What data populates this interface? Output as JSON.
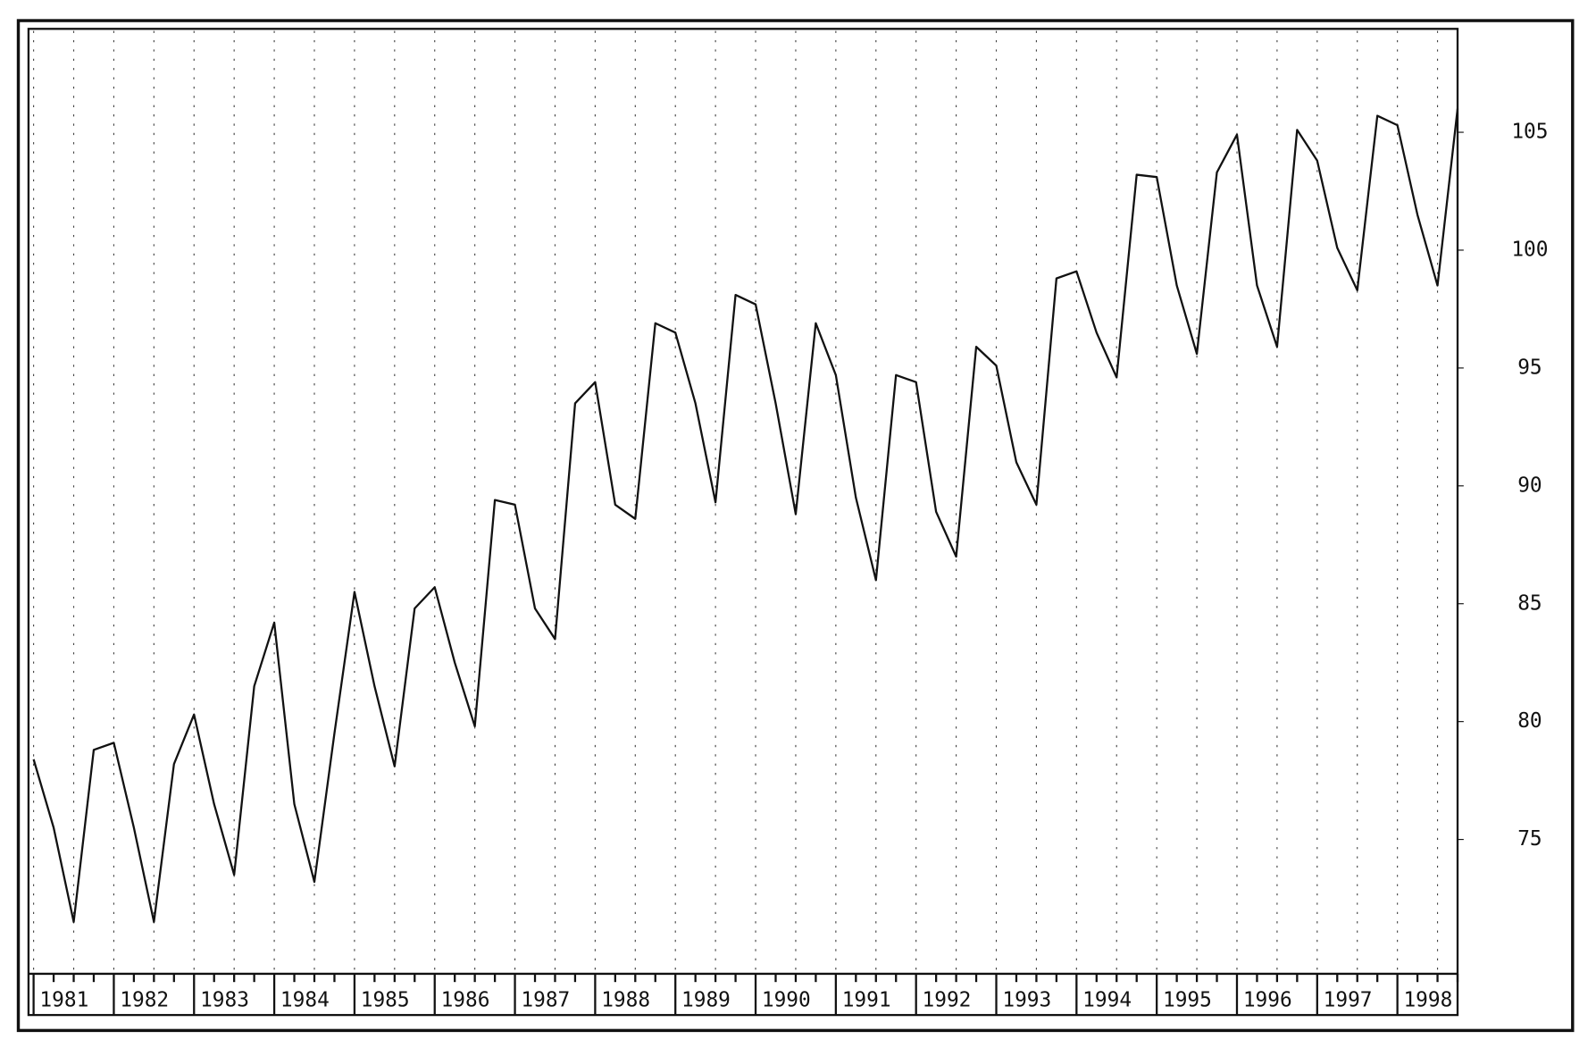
{
  "chart_data": {
    "type": "line",
    "x": [
      1981,
      1981.25,
      1981.5,
      1981.75,
      1982,
      1982.25,
      1982.5,
      1982.75,
      1983,
      1983.25,
      1983.5,
      1983.75,
      1984,
      1984.25,
      1984.5,
      1984.75,
      1985,
      1985.25,
      1985.5,
      1985.75,
      1986,
      1986.25,
      1986.5,
      1986.75,
      1987,
      1987.25,
      1987.5,
      1987.75,
      1988,
      1988.25,
      1988.5,
      1988.75,
      1989,
      1989.25,
      1989.5,
      1989.75,
      1990,
      1990.25,
      1990.5,
      1990.75,
      1991,
      1991.25,
      1991.5,
      1991.75,
      1992,
      1992.25,
      1992.5,
      1992.75,
      1993,
      1993.25,
      1993.5,
      1993.75,
      1994,
      1994.25,
      1994.5,
      1994.75,
      1995,
      1995.25,
      1995.5,
      1995.75,
      1996,
      1996.25,
      1996.5,
      1996.75,
      1997,
      1997.25,
      1997.5,
      1997.75,
      1998,
      1998.25,
      1998.5,
      1998.75
    ],
    "series": [
      {
        "color": "#111111",
        "values": [
          78.4,
          75.5,
          71.5,
          78.8,
          79.1,
          75.5,
          71.5,
          78.2,
          80.3,
          76.5,
          73.5,
          81.5,
          84.2,
          76.5,
          73.2,
          79.5,
          85.5,
          81.5,
          78.1,
          84.8,
          85.7,
          82.5,
          79.8,
          89.4,
          89.2,
          84.8,
          83.5,
          93.5,
          94.4,
          89.2,
          88.6,
          96.9,
          96.5,
          93.5,
          89.3,
          98.1,
          97.7,
          93.5,
          88.8,
          96.9,
          94.7,
          89.5,
          86.0,
          94.7,
          94.4,
          88.9,
          87.0,
          95.9,
          95.1,
          91.0,
          89.2,
          98.8,
          99.1,
          96.5,
          94.6,
          103.2,
          103.1,
          98.5,
          95.6,
          103.3,
          104.9,
          98.5,
          95.9,
          105.1,
          103.8,
          100.1,
          98.3,
          105.7,
          105.3,
          101.5,
          98.5,
          106.0
        ]
      }
    ],
    "xlim": [
      1981,
      1998.75
    ],
    "xticks": [
      1981,
      1982,
      1983,
      1984,
      1985,
      1986,
      1987,
      1988,
      1989,
      1990,
      1991,
      1992,
      1993,
      1994,
      1995,
      1996,
      1997,
      1998
    ],
    "ylim": [
      69.3,
      109.3
    ],
    "yticks": [
      75,
      80,
      85,
      90,
      95,
      100,
      105
    ],
    "grid": true
  }
}
